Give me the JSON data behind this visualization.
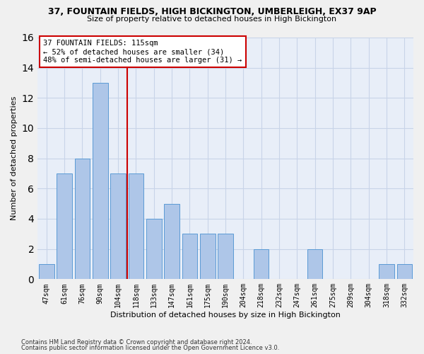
{
  "title": "37, FOUNTAIN FIELDS, HIGH BICKINGTON, UMBERLEIGH, EX37 9AP",
  "subtitle": "Size of property relative to detached houses in High Bickington",
  "xlabel": "Distribution of detached houses by size in High Bickington",
  "ylabel": "Number of detached properties",
  "categories": [
    "47sqm",
    "61sqm",
    "76sqm",
    "90sqm",
    "104sqm",
    "118sqm",
    "133sqm",
    "147sqm",
    "161sqm",
    "175sqm",
    "190sqm",
    "204sqm",
    "218sqm",
    "232sqm",
    "247sqm",
    "261sqm",
    "275sqm",
    "289sqm",
    "304sqm",
    "318sqm",
    "332sqm"
  ],
  "values": [
    1,
    7,
    8,
    13,
    7,
    7,
    4,
    5,
    3,
    3,
    3,
    0,
    2,
    0,
    0,
    2,
    0,
    0,
    0,
    1,
    1
  ],
  "bar_color": "#aec6e8",
  "bar_edge_color": "#5b9bd5",
  "property_label": "37 FOUNTAIN FIELDS: 115sqm",
  "annotation_line1": "← 52% of detached houses are smaller (34)",
  "annotation_line2": "48% of semi-detached houses are larger (31) →",
  "vline_color": "#cc0000",
  "annotation_box_color": "#ffffff",
  "annotation_box_edge_color": "#cc0000",
  "ylim": [
    0,
    16
  ],
  "yticks": [
    0,
    2,
    4,
    6,
    8,
    10,
    12,
    14,
    16
  ],
  "grid_color": "#c8d4e8",
  "background_color": "#e8eef8",
  "footnote1": "Contains HM Land Registry data © Crown copyright and database right 2024.",
  "footnote2": "Contains public sector information licensed under the Open Government Licence v3.0.",
  "title_fontsize": 9,
  "subtitle_fontsize": 8,
  "ylabel_fontsize": 8,
  "xlabel_fontsize": 8,
  "tick_fontsize": 7,
  "annotation_fontsize": 7.5
}
